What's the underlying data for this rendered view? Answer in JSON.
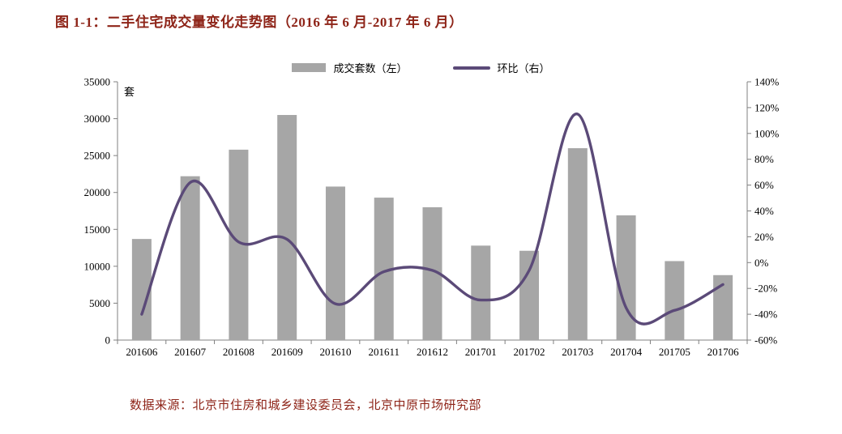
{
  "title": "图 1-1：二手住宅成交量变化走势图（2016 年 6 月-2017 年 6 月）",
  "footer": "数据来源：北京市住房和城乡建设委员会，北京中原市场研究部",
  "legend": [
    {
      "label": "成交套数（左）",
      "marker": "bar-swatch",
      "color": "#a6a6a6"
    },
    {
      "label": "环比（右）",
      "marker": "line-swatch",
      "color": "#5b4a78"
    }
  ],
  "colors": {
    "title_text": "#8e2418",
    "footer_text": "#8e2418",
    "axis": "#808080",
    "bar": "#a6a6a6",
    "line": "#5b4a78",
    "tick_text": "#000000"
  },
  "chart_data": {
    "type": "bar",
    "subtype": "bar+line combo, dual axis, smoothed line",
    "title": "图 1-1：二手住宅成交量变化走势图（2016 年 6 月-2017 年 6 月）",
    "categories": [
      "201606",
      "201607",
      "201608",
      "201609",
      "201610",
      "201611",
      "201612",
      "201701",
      "201702",
      "201703",
      "201704",
      "201705",
      "201706"
    ],
    "series": [
      {
        "name": "成交套数（左）",
        "type": "bar",
        "axis": "left",
        "color": "#a6a6a6",
        "values": [
          13700,
          22200,
          25800,
          30500,
          20800,
          19300,
          18000,
          12800,
          12100,
          26000,
          16900,
          10700,
          8800
        ]
      },
      {
        "name": "环比（右）",
        "type": "line",
        "axis": "right",
        "color": "#5b4a78",
        "values": [
          -40,
          62,
          16,
          18,
          -32,
          -7,
          -6,
          -29,
          -6,
          115,
          -35,
          -37,
          -17
        ]
      }
    ],
    "left_axis": {
      "unit_label": "套",
      "min": 0,
      "max": 35000,
      "step": 5000,
      "tick_labels": [
        "0",
        "5000",
        "10000",
        "15000",
        "20000",
        "25000",
        "30000",
        "35000"
      ]
    },
    "right_axis": {
      "unit": "%",
      "min": -60,
      "max": 140,
      "step": 20,
      "tick_labels": [
        "-60%",
        "-40%",
        "-20%",
        "0%",
        "20%",
        "40%",
        "60%",
        "80%",
        "100%",
        "120%",
        "140%"
      ]
    },
    "grid": false,
    "legend_position": "top"
  }
}
